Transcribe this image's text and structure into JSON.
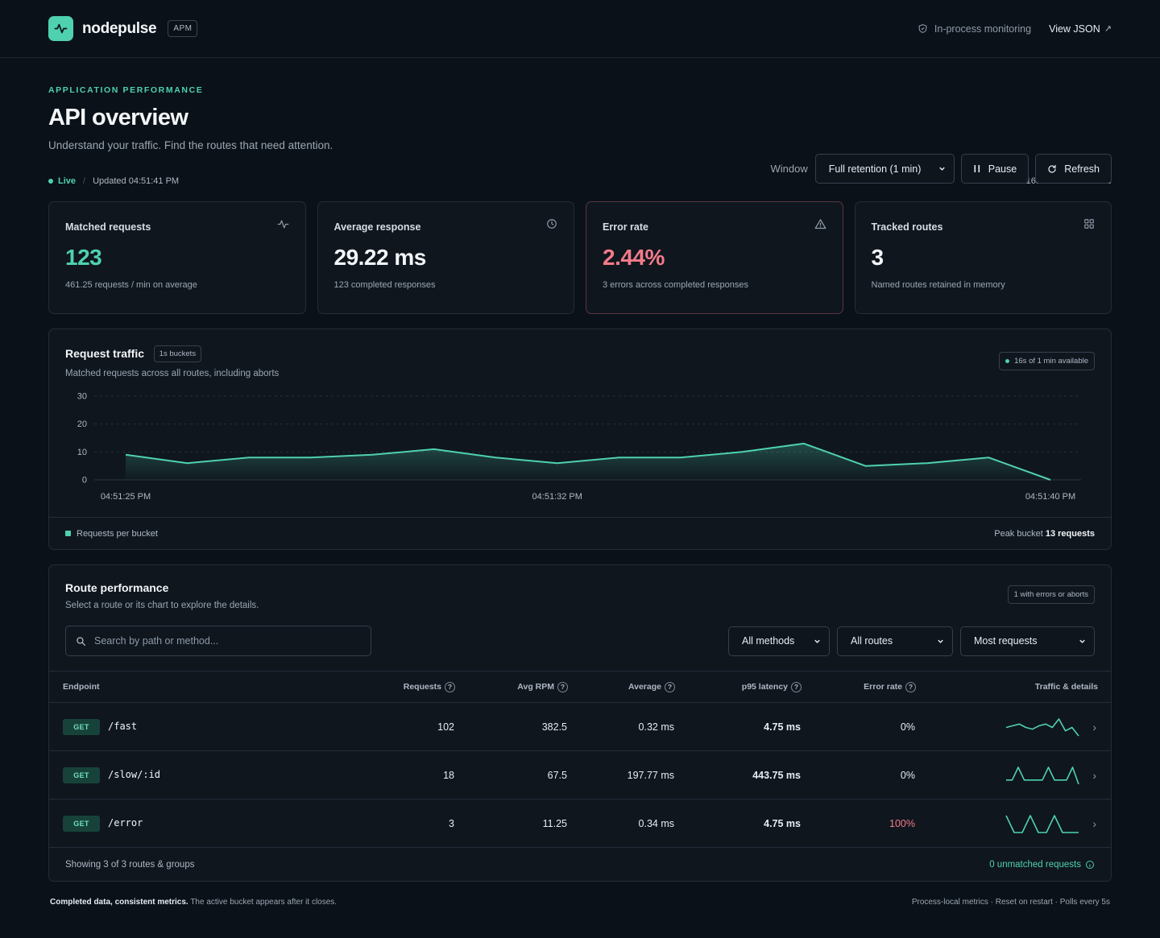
{
  "header": {
    "brand": "nodepulse",
    "badge": "APM",
    "monitoring": "In-process monitoring",
    "view_json": "View JSON"
  },
  "page": {
    "eyebrow": "APPLICATION PERFORMANCE",
    "title": "API overview",
    "subtitle": "Understand your traffic. Find the routes that need attention."
  },
  "controls": {
    "window_label": "Window",
    "window_value": "Full retention (1 min)",
    "pause": "Pause",
    "refresh": "Refresh"
  },
  "status": {
    "live": "Live",
    "separator": "/",
    "updated": "Updated 04:51:41 PM",
    "available": "16s of 1 min available"
  },
  "cards": [
    {
      "label": "Matched requests",
      "value": "123",
      "sub": "461.25 requests / min on average",
      "icon": "pulse-icon",
      "color": "#4fd1b0"
    },
    {
      "label": "Average response",
      "value": "29.22 ms",
      "sub": "123 completed responses",
      "icon": "clock-icon",
      "color": "#f3f6f9"
    },
    {
      "label": "Error rate",
      "value": "2.44%",
      "sub": "3 errors across completed responses",
      "icon": "warning-icon",
      "color": "#f47b89"
    },
    {
      "label": "Tracked routes",
      "value": "3",
      "sub": "Named routes retained in memory",
      "icon": "grid-icon",
      "color": "#f3f6f9"
    }
  ],
  "traffic": {
    "title": "Request traffic",
    "chip": "1s buckets",
    "subtitle": "Matched requests across all routes, including aborts",
    "pill": "16s of 1 min available",
    "legend": "Requests per bucket",
    "peak_label": "Peak bucket",
    "peak_value": "13 requests"
  },
  "chart_data": {
    "type": "area",
    "x": [
      "04:51:25 PM",
      "04:51:26 PM",
      "04:51:27 PM",
      "04:51:28 PM",
      "04:51:29 PM",
      "04:51:30 PM",
      "04:51:31 PM",
      "04:51:32 PM",
      "04:51:33 PM",
      "04:51:34 PM",
      "04:51:35 PM",
      "04:51:36 PM",
      "04:51:37 PM",
      "04:51:38 PM",
      "04:51:39 PM",
      "04:51:40 PM"
    ],
    "x_tick_labels": [
      "04:51:25 PM",
      "04:51:32 PM",
      "04:51:40 PM"
    ],
    "values": [
      9,
      6,
      8,
      8,
      9,
      11,
      8,
      6,
      8,
      8,
      10,
      13,
      5,
      6,
      8,
      0
    ],
    "yticks": [
      0,
      10,
      20,
      30
    ],
    "ylim": [
      0,
      30
    ],
    "grid": true,
    "color": "#4fd1b0"
  },
  "routes": {
    "title": "Route performance",
    "subtitle": "Select a route or its chart to explore the details.",
    "pill": "1 with errors or aborts",
    "search_placeholder": "Search by path or method...",
    "filters": [
      "All methods",
      "All routes",
      "Most requests"
    ],
    "columns": [
      "Endpoint",
      "Requests",
      "Avg RPM",
      "Average",
      "p95 latency",
      "Error rate",
      "Traffic & details"
    ],
    "rows": [
      {
        "method": "GET",
        "path": "/fast",
        "requests": "102",
        "rpm": "382.5",
        "average": "0.32 ms",
        "p95": "4.75 ms",
        "error_rate": "0%",
        "error_color": "#e6edf3",
        "spark": [
          5,
          6,
          7,
          5,
          4,
          6,
          7,
          5,
          10,
          3,
          5,
          0
        ]
      },
      {
        "method": "GET",
        "path": "/slow/:id",
        "requests": "18",
        "rpm": "67.5",
        "average": "197.77 ms",
        "p95": "443.75 ms",
        "error_rate": "0%",
        "error_color": "#e6edf3",
        "spark": [
          2,
          2,
          8,
          2,
          2,
          2,
          2,
          8,
          2,
          2,
          2,
          8,
          0
        ]
      },
      {
        "method": "GET",
        "path": "/error",
        "requests": "3",
        "rpm": "11.25",
        "average": "0.34 ms",
        "p95": "4.75 ms",
        "error_rate": "100%",
        "error_color": "#f47b89",
        "spark": [
          10,
          0,
          0,
          10,
          0,
          0,
          10,
          0,
          0,
          0
        ]
      }
    ],
    "showing": "Showing 3 of 3 routes & groups",
    "unmatched": "0 unmatched requests"
  },
  "footer": {
    "left_bold": "Completed data, consistent metrics.",
    "left_rest": " The active bucket appears after it closes.",
    "right": "Process-local metrics · Reset on restart · Polls every 5s"
  }
}
